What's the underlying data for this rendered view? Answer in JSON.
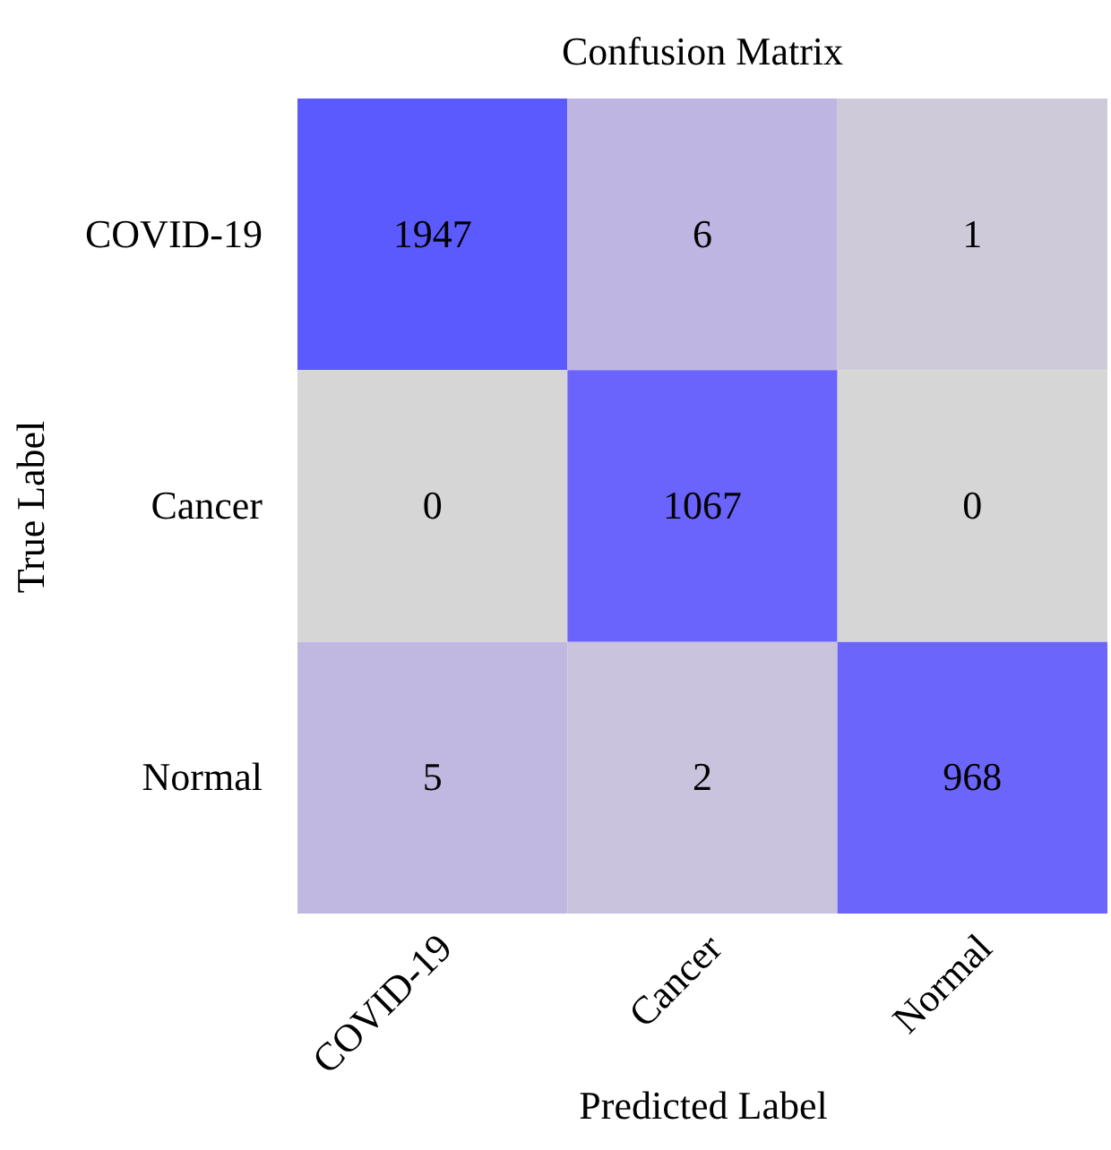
{
  "chart_data": {
    "type": "heatmap",
    "title": "Confusion Matrix",
    "xlabel": "Predicted Label",
    "ylabel": "True Label",
    "categories": [
      "COVID-19",
      "Cancer",
      "Normal"
    ],
    "y_categories": [
      "COVID-19",
      "Cancer",
      "Normal"
    ],
    "cells": [
      [
        1947,
        6,
        1
      ],
      [
        0,
        1067,
        0
      ],
      [
        5,
        2,
        968
      ]
    ],
    "data_labels": true
  }
}
